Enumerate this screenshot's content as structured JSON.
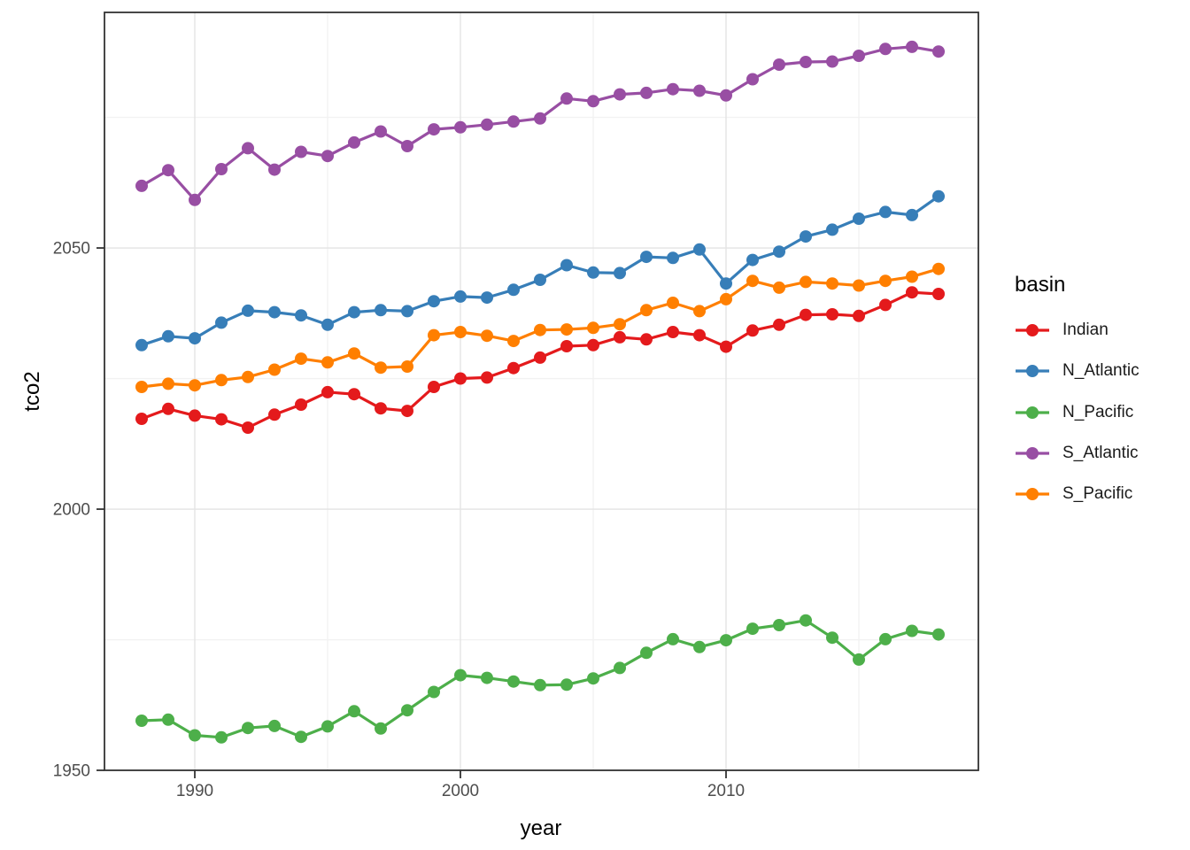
{
  "figure": {
    "background": "#ffffff",
    "panel_border_color": "#333333",
    "grid_major_color": "#e4e4e4",
    "grid_minor_color": "#f2f2f2",
    "tick_color": "#333333",
    "tick_label_color": "#4d4d4d",
    "axis_title_color": "#000000"
  },
  "chart_data": {
    "type": "line",
    "title": "",
    "xlabel": "year",
    "ylabel": "tco2",
    "legend_title": "basin",
    "legend_position": "right",
    "grid": true,
    "xlim": [
      1986.6,
      2019.5
    ],
    "ylim": [
      1950,
      2095.1
    ],
    "x_ticks": [
      1990,
      2000,
      2010
    ],
    "x_minor_ticks": [
      1995,
      2005,
      2015
    ],
    "y_ticks": [
      1950,
      2000,
      2050
    ],
    "y_minor_ticks": [
      1975,
      2025,
      2075
    ],
    "x": [
      1988,
      1989,
      1990,
      1991,
      1992,
      1993,
      1994,
      1995,
      1996,
      1997,
      1998,
      1999,
      2000,
      2001,
      2002,
      2003,
      2004,
      2005,
      2006,
      2007,
      2008,
      2009,
      2010,
      2011,
      2012,
      2013,
      2014,
      2015,
      2016,
      2017,
      2018
    ],
    "series": [
      {
        "name": "Indian",
        "color": "#E41A1C",
        "values": [
          2017.3,
          2019.2,
          2017.9,
          2017.2,
          2015.6,
          2018.1,
          2020.0,
          2022.4,
          2022.0,
          2019.3,
          2018.8,
          2023.4,
          2025.0,
          2025.2,
          2027.0,
          2029.0,
          2031.2,
          2031.4,
          2032.9,
          2032.5,
          2033.9,
          2033.3,
          2031.1,
          2034.2,
          2035.3,
          2037.2,
          2037.3,
          2037.0,
          2039.1,
          2041.5,
          2041.2
        ]
      },
      {
        "name": "N_Atlantic",
        "color": "#377EB8",
        "values": [
          2031.4,
          2033.1,
          2032.7,
          2035.7,
          2038.0,
          2037.7,
          2037.1,
          2035.3,
          2037.7,
          2038.1,
          2037.9,
          2039.8,
          2040.7,
          2040.5,
          2042.0,
          2043.9,
          2046.7,
          2045.3,
          2045.2,
          2048.3,
          2048.1,
          2049.7,
          2043.2,
          2047.7,
          2049.3,
          2052.2,
          2053.5,
          2055.6,
          2056.9,
          2056.3,
          2059.9
        ]
      },
      {
        "name": "N_Pacific",
        "color": "#4DAF4A",
        "values": [
          1959.5,
          1959.7,
          1956.7,
          1956.3,
          1958.1,
          1958.5,
          1956.4,
          1958.4,
          1961.3,
          1958.0,
          1961.5,
          1965.0,
          1968.2,
          1967.7,
          1967.0,
          1966.3,
          1966.4,
          1967.6,
          1969.6,
          1972.5,
          1975.1,
          1973.6,
          1974.9,
          1977.1,
          1977.8,
          1978.7,
          1975.4,
          1971.2,
          1975.1,
          1976.7,
          1976.0
        ]
      },
      {
        "name": "S_Atlantic",
        "color": "#984EA3",
        "values": [
          2061.9,
          2064.9,
          2059.2,
          2065.1,
          2069.1,
          2065.0,
          2068.4,
          2067.6,
          2070.2,
          2072.3,
          2069.5,
          2072.7,
          2073.1,
          2073.6,
          2074.2,
          2074.8,
          2078.6,
          2078.1,
          2079.4,
          2079.7,
          2080.4,
          2080.1,
          2079.2,
          2082.3,
          2085.1,
          2085.6,
          2085.7,
          2086.8,
          2088.1,
          2088.5,
          2087.6
        ]
      },
      {
        "name": "S_Pacific",
        "color": "#FF7F00",
        "values": [
          2023.4,
          2024.0,
          2023.7,
          2024.7,
          2025.3,
          2026.7,
          2028.8,
          2028.1,
          2029.8,
          2027.1,
          2027.3,
          2033.3,
          2033.9,
          2033.2,
          2032.2,
          2034.3,
          2034.4,
          2034.7,
          2035.4,
          2038.1,
          2039.5,
          2037.9,
          2040.2,
          2043.7,
          2042.4,
          2043.5,
          2043.2,
          2042.8,
          2043.7,
          2044.5,
          2046.0
        ]
      }
    ]
  }
}
